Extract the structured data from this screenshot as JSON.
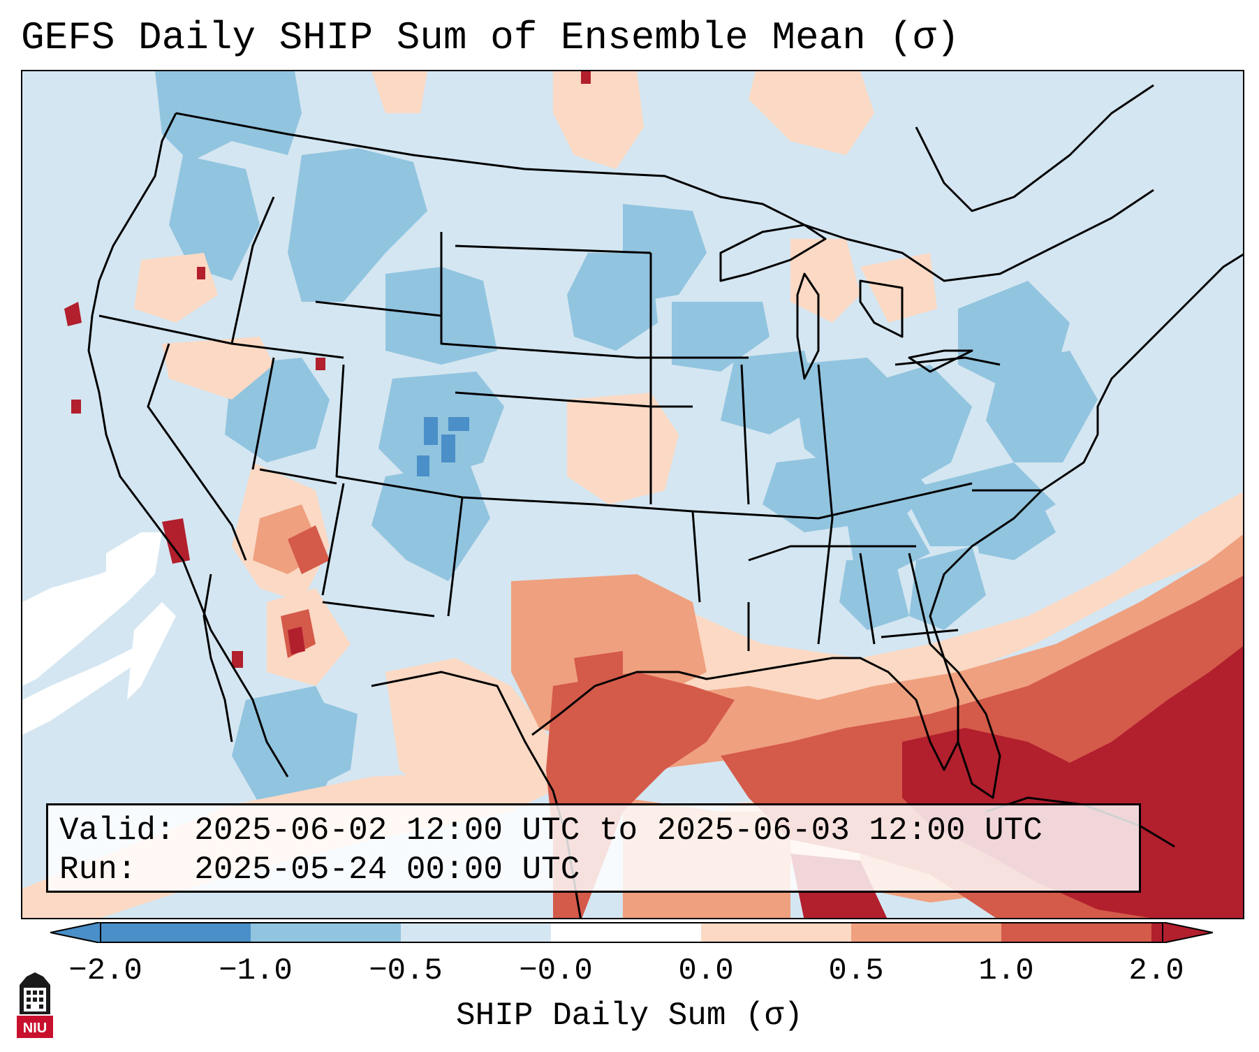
{
  "title": "GEFS Daily SHIP Sum of Ensemble Mean (σ)",
  "info": {
    "valid_label": "Valid:",
    "valid_value": "2025-06-02 12:00 UTC to 2025-06-03 12:00 UTC",
    "run_label": "Run:",
    "run_value": "2025-05-24 00:00 UTC"
  },
  "colorbar": {
    "label": "SHIP Daily Sum (σ)",
    "ticks": [
      "−2.0",
      "−1.0",
      "−0.5",
      "−0.0",
      "0.0",
      "0.5",
      "1.0",
      "2.0"
    ],
    "colors": [
      "#4a8fc8",
      "#91c4df",
      "#d4e6f1",
      "#ffffff",
      "#fbd9c4",
      "#efa07f",
      "#d45a4a",
      "#b21f2d"
    ]
  },
  "map": {
    "region": "Continental United States",
    "palette": {
      "ocean": "#d4e6f1",
      "blue_light": "#d4e6f1",
      "blue_mid": "#91c4df",
      "blue_dark": "#4a8fc8",
      "red_light": "#fbd9c4",
      "red_mid": "#efa07f",
      "red_strong": "#d45a4a",
      "red_dark": "#b21f2d",
      "white": "#ffffff"
    }
  },
  "logo": {
    "text": "NIU",
    "color": "#c8102e"
  }
}
